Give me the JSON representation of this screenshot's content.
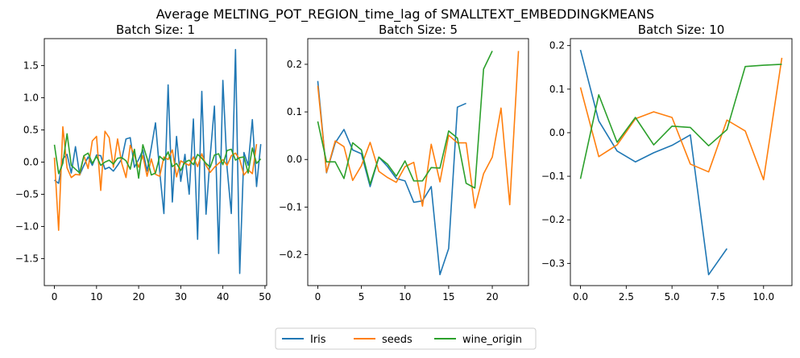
{
  "title": "Average MELTING_POT_REGION_time_lag of SMALLTEXT_EMBEDDINGKMEANS",
  "legend": {
    "placement": "bottom-center",
    "entries": [
      {
        "name": "Iris",
        "color": "#1f77b4"
      },
      {
        "name": "seeds",
        "color": "#ff7f0e"
      },
      {
        "name": "wine_origin",
        "color": "#2ca02c"
      }
    ]
  },
  "chart_data": [
    {
      "type": "line",
      "title": "Batch Size: 1",
      "xlim": [
        -2.4,
        50.4
      ],
      "ylim": [
        -1.92,
        1.92
      ],
      "xticks": [
        0,
        10,
        20,
        30,
        40,
        50
      ],
      "xtick_labels": [
        "0",
        "10",
        "20",
        "30",
        "40",
        "50"
      ],
      "yticks": [
        -1.5,
        -1.0,
        -0.5,
        0.0,
        0.5,
        1.0,
        1.5
      ],
      "ytick_labels": [
        "−1.5",
        "−1.0",
        "−0.5",
        "0.0",
        "0.5",
        "1.0",
        "1.5"
      ],
      "grid": false,
      "series": [
        {
          "name": "Iris",
          "color": "#1f77b4",
          "values": [
            -0.28,
            -0.33,
            0.05,
            0.12,
            -0.17,
            0.24,
            -0.2,
            -0.05,
            0.08,
            -0.05,
            0.11,
            0.1,
            -0.11,
            -0.08,
            -0.14,
            -0.05,
            0.05,
            0.36,
            0.38,
            -0.08,
            0.04,
            0.19,
            -0.14,
            0.22,
            0.61,
            -0.15,
            -0.8,
            1.2,
            -0.62,
            0.4,
            -0.3,
            0.12,
            -0.5,
            0.67,
            -1.2,
            1.1,
            -0.81,
            0.1,
            0.87,
            -1.42,
            1.27,
            -0.09,
            -0.8,
            1.75,
            -1.73,
            0.15,
            -0.05,
            0.66,
            -0.38,
            0.28
          ]
        },
        {
          "name": "seeds",
          "color": "#ff7f0e",
          "values": [
            0.07,
            -1.06,
            0.55,
            -0.09,
            -0.24,
            -0.19,
            -0.2,
            0.1,
            -0.1,
            0.33,
            0.4,
            -0.44,
            0.48,
            0.38,
            -0.08,
            0.36,
            -0.02,
            -0.24,
            0.26,
            0.1,
            -0.08,
            0.1,
            -0.22,
            0.05,
            -0.19,
            -0.22,
            0.08,
            0.04,
            0.19,
            -0.23,
            0.02,
            -0.02,
            -0.05,
            0.08,
            -0.07,
            0.13,
            -0.05,
            -0.16,
            -0.08,
            -0.02,
            0.04,
            -0.05,
            0.1,
            0.14,
            0.04,
            -0.2,
            -0.12,
            -0.18,
            0.28
          ]
        },
        {
          "name": "wine_origin",
          "color": "#2ca02c",
          "values": [
            0.27,
            -0.18,
            -0.02,
            0.44,
            -0.05,
            -0.11,
            -0.17,
            0.1,
            0.14,
            -0.02,
            0.09,
            -0.05,
            0.0,
            0.03,
            -0.03,
            0.06,
            0.07,
            0.02,
            -0.11,
            0.2,
            -0.25,
            0.27,
            0.06,
            -0.2,
            -0.17,
            0.09,
            0.03,
            0.16,
            -0.07,
            -0.02,
            -0.13,
            0.0,
            0.03,
            -0.04,
            0.12,
            0.06,
            -0.02,
            -0.08,
            0.11,
            0.13,
            -0.04,
            0.18,
            0.2,
            0.03,
            0.07,
            0.08,
            -0.17,
            0.22,
            -0.02,
            0.05
          ]
        }
      ]
    },
    {
      "type": "line",
      "title": "Batch Size: 5",
      "xlim": [
        -1.15,
        24.15
      ],
      "ylim": [
        -0.265,
        0.254
      ],
      "xticks": [
        0,
        5,
        10,
        15,
        20
      ],
      "xtick_labels": [
        "0",
        "5",
        "10",
        "15",
        "20"
      ],
      "yticks": [
        -0.2,
        -0.1,
        0.0,
        0.1,
        0.2
      ],
      "ytick_labels": [
        "−0.2",
        "−0.1",
        "0.0",
        "0.1",
        "0.2"
      ],
      "grid": false,
      "series": [
        {
          "name": "Iris",
          "color": "#1f77b4",
          "values": [
            0.165,
            -0.028,
            0.035,
            0.063,
            0.02,
            0.012,
            -0.057,
            0.005,
            -0.015,
            -0.04,
            -0.045,
            -0.09,
            -0.087,
            -0.057,
            -0.242,
            -0.187,
            0.11,
            0.118
          ]
        },
        {
          "name": "seeds",
          "color": "#ff7f0e",
          "values": [
            0.155,
            -0.027,
            0.039,
            0.027,
            -0.044,
            -0.013,
            0.036,
            -0.025,
            -0.038,
            -0.048,
            -0.015,
            -0.006,
            -0.098,
            0.032,
            -0.047,
            0.051,
            0.035,
            0.035,
            -0.102,
            -0.03,
            0.005,
            0.108,
            -0.095,
            0.228
          ]
        },
        {
          "name": "wine_origin",
          "color": "#2ca02c",
          "values": [
            0.08,
            -0.005,
            -0.005,
            -0.04,
            0.035,
            0.02,
            -0.052,
            0.005,
            -0.01,
            -0.035,
            -0.003,
            -0.045,
            -0.045,
            -0.017,
            -0.018,
            0.06,
            0.045,
            -0.05,
            -0.06,
            0.19,
            0.228
          ]
        }
      ]
    },
    {
      "type": "line",
      "title": "Batch Size: 10",
      "xlim": [
        -0.55,
        11.55
      ],
      "ylim": [
        -0.351,
        0.216
      ],
      "xticks": [
        0,
        2.5,
        5,
        7.5,
        10
      ],
      "xtick_labels": [
        "0.0",
        "2.5",
        "5.0",
        "7.5",
        "10.0"
      ],
      "yticks": [
        -0.3,
        -0.2,
        -0.1,
        0.0,
        0.1,
        0.2
      ],
      "ytick_labels": [
        "−0.3",
        "−0.2",
        "−0.1",
        "0.0",
        "0.1",
        "0.2"
      ],
      "grid": false,
      "series": [
        {
          "name": "Iris",
          "color": "#1f77b4",
          "values": [
            0.19,
            0.027,
            -0.042,
            -0.067,
            -0.046,
            -0.029,
            -0.005,
            -0.326,
            -0.266
          ]
        },
        {
          "name": "seeds",
          "color": "#ff7f0e",
          "values": [
            0.104,
            -0.055,
            -0.028,
            0.032,
            0.048,
            0.035,
            -0.072,
            -0.09,
            0.029,
            0.004,
            -0.108,
            0.172
          ]
        },
        {
          "name": "wine_origin",
          "color": "#2ca02c",
          "values": [
            -0.106,
            0.087,
            -0.022,
            0.035,
            -0.028,
            0.015,
            0.012,
            -0.03,
            0.007,
            0.152,
            0.155,
            0.157
          ]
        }
      ]
    }
  ]
}
